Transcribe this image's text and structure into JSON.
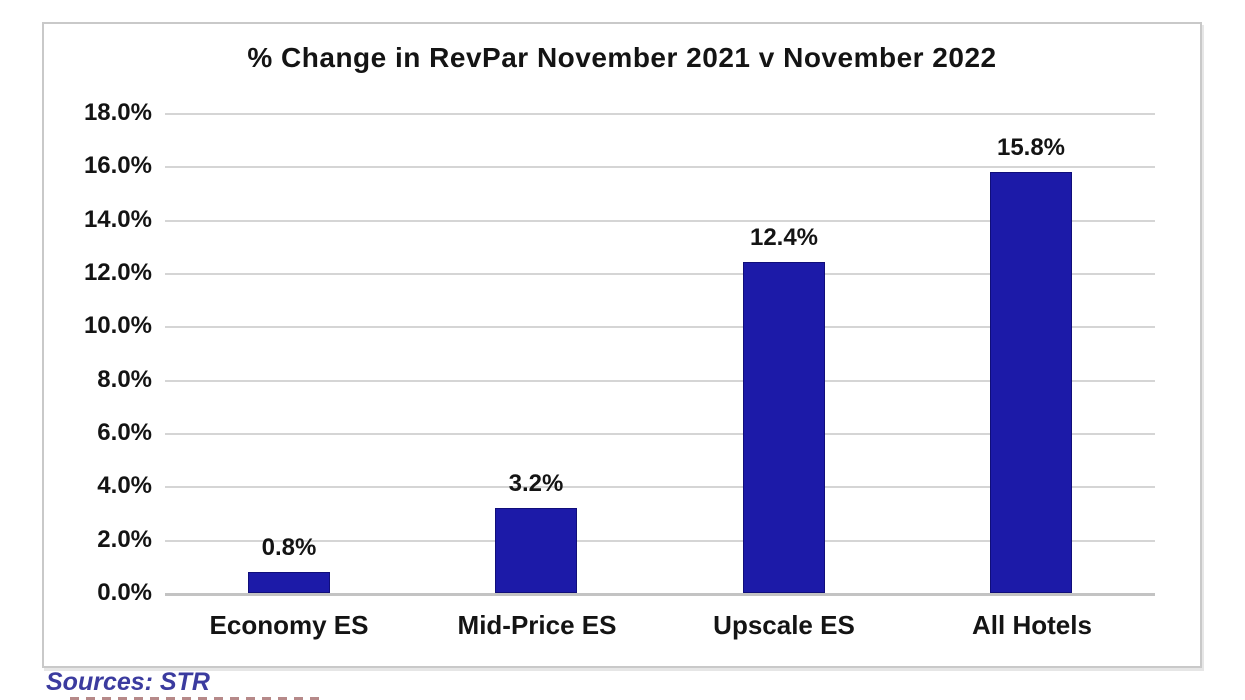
{
  "chart_data": {
    "type": "bar",
    "title": "% Change in RevPar November 2021 v November 2022",
    "categories": [
      "Economy ES",
      "Mid-Price ES",
      "Upscale ES",
      "All Hotels"
    ],
    "values": [
      0.8,
      3.2,
      12.4,
      15.8
    ],
    "data_labels": [
      "0.8%",
      "3.2%",
      "12.4%",
      "15.8%"
    ],
    "xlabel": "",
    "ylabel": "",
    "ylim": [
      0,
      18
    ],
    "y_tick_step": 2,
    "y_tick_labels": [
      "18.0%",
      "16.0%",
      "14.0%",
      "12.0%",
      "10.0%",
      "8.0%",
      "6.0%",
      "4.0%",
      "2.0%",
      "0.0%"
    ],
    "grid": true,
    "legend_position": "none",
    "bar_color": "#1c1aa8",
    "bar_border_color": "#100e7a"
  },
  "footer": {
    "source_label": "Sources: STR"
  },
  "colors": {
    "grid": "#d5d5d5",
    "axis_baseline": "#c3c3c3",
    "frame_border": "#c9c9c9",
    "title_text": "#141414",
    "source_text": "#3b3b9f",
    "background": "#ffffff"
  }
}
